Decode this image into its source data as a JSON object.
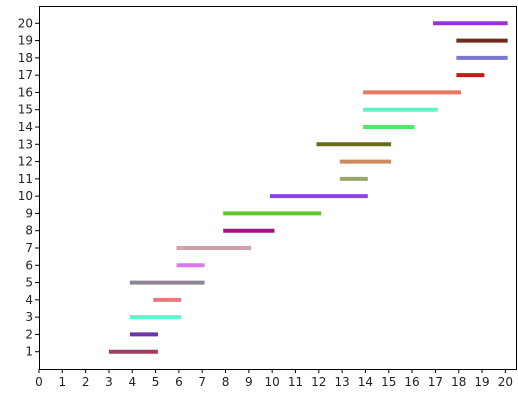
{
  "chart_data": {
    "type": "bar",
    "orientation": "horizontal",
    "title": "",
    "xlabel": "",
    "ylabel": "",
    "xlim": [
      0,
      20.5
    ],
    "ylim": [
      0,
      21
    ],
    "grid": false,
    "legend": "none",
    "x_ticks": [
      0,
      1,
      2,
      3,
      4,
      5,
      6,
      7,
      8,
      9,
      10,
      11,
      12,
      13,
      14,
      15,
      16,
      17,
      18,
      19,
      20
    ],
    "y_ticks": [
      1,
      2,
      3,
      4,
      5,
      6,
      7,
      8,
      9,
      10,
      11,
      12,
      13,
      14,
      15,
      16,
      17,
      18,
      19,
      20
    ],
    "segments": [
      {
        "y": 1,
        "start": 3.0,
        "end": 5.1,
        "color": "#9e3d63"
      },
      {
        "y": 2,
        "start": 3.9,
        "end": 5.1,
        "color": "#6a35a8"
      },
      {
        "y": 3,
        "start": 3.9,
        "end": 6.1,
        "color": "#62f4cf"
      },
      {
        "y": 4,
        "start": 4.9,
        "end": 6.1,
        "color": "#e77a7e"
      },
      {
        "y": 5,
        "start": 3.9,
        "end": 7.1,
        "color": "#8d8692"
      },
      {
        "y": 6,
        "start": 5.9,
        "end": 7.1,
        "color": "#db76ec"
      },
      {
        "y": 7,
        "start": 5.9,
        "end": 9.1,
        "color": "#cfa2a9"
      },
      {
        "y": 8,
        "start": 7.9,
        "end": 10.1,
        "color": "#a01682"
      },
      {
        "y": 9,
        "start": 7.9,
        "end": 12.1,
        "color": "#5ec82a"
      },
      {
        "y": 10,
        "start": 9.9,
        "end": 14.1,
        "color": "#8b45e0"
      },
      {
        "y": 11,
        "start": 12.9,
        "end": 14.1,
        "color": "#99a76a"
      },
      {
        "y": 12,
        "start": 12.9,
        "end": 15.1,
        "color": "#c98a5f"
      },
      {
        "y": 13,
        "start": 11.9,
        "end": 15.1,
        "color": "#6a6a1b"
      },
      {
        "y": 14,
        "start": 13.9,
        "end": 16.1,
        "color": "#52e861"
      },
      {
        "y": 15,
        "start": 13.9,
        "end": 17.1,
        "color": "#5ef4c6"
      },
      {
        "y": 16,
        "start": 13.9,
        "end": 18.1,
        "color": "#e57a61"
      },
      {
        "y": 17,
        "start": 17.9,
        "end": 19.1,
        "color": "#c51a18"
      },
      {
        "y": 18,
        "start": 17.9,
        "end": 20.1,
        "color": "#7b76d2"
      },
      {
        "y": 19,
        "start": 17.9,
        "end": 20.1,
        "color": "#6b2a1a"
      },
      {
        "y": 20,
        "start": 16.9,
        "end": 20.1,
        "color": "#9c30dc"
      }
    ],
    "colors": {
      "axis": "#000000",
      "tick_text": "#222222",
      "background": "#ffffff"
    }
  }
}
